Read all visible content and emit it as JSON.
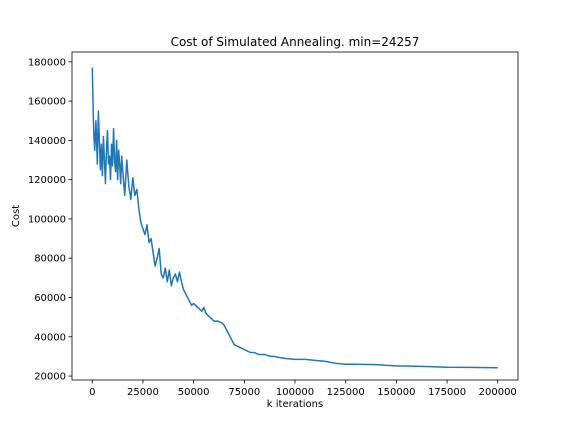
{
  "chart_data": {
    "type": "line",
    "title": "Cost of Simulated Annealing. min=24257",
    "xlabel": "k iterations",
    "ylabel": "Cost",
    "xlim": [
      -10000,
      210000
    ],
    "ylim": [
      18000,
      185000
    ],
    "xticks": [
      0,
      25000,
      50000,
      75000,
      100000,
      125000,
      150000,
      175000,
      200000
    ],
    "yticks": [
      20000,
      40000,
      60000,
      80000,
      100000,
      120000,
      140000,
      160000,
      180000
    ],
    "grid": false,
    "line_color": "#1f77b4",
    "series": [
      {
        "x": [
          0,
          300,
          700,
          1200,
          1800,
          2500,
          3000,
          3500,
          4000,
          4500,
          5000,
          5500,
          6000,
          6500,
          7000,
          7500,
          8000,
          8500,
          9000,
          9500,
          10000,
          10500,
          11000,
          11500,
          12000,
          12500,
          13000,
          13500,
          14000,
          14500,
          15000,
          16000,
          17000,
          18000,
          19000,
          20000,
          21000,
          22000,
          23000,
          24000,
          25000,
          26000,
          27000,
          28000,
          29000,
          30000,
          31000,
          32000,
          33000,
          34000,
          35000,
          36000,
          37000,
          38000,
          39000,
          40000,
          41000,
          42000,
          43000,
          44000,
          45000,
          46000,
          47000,
          48000,
          49000,
          50000,
          52000,
          54000,
          55000,
          56000,
          58000,
          60000,
          62000,
          64000,
          65000,
          66000,
          67000,
          68000,
          69000,
          70000,
          72000,
          74000,
          76000,
          78000,
          80000,
          82000,
          85000,
          88000,
          90000,
          92000,
          95000,
          100000,
          105000,
          110000,
          115000,
          120000,
          125000,
          130000,
          140000,
          150000,
          160000,
          170000,
          175000,
          185000,
          195000,
          200000
        ],
        "y": [
          177000,
          163000,
          145000,
          135000,
          150000,
          128000,
          155000,
          140000,
          125000,
          138000,
          122000,
          142000,
          130000,
          118000,
          135000,
          145000,
          128000,
          132000,
          120000,
          138000,
          127000,
          146000,
          130000,
          124000,
          140000,
          120000,
          135000,
          128000,
          118000,
          132000,
          125000,
          112000,
          130000,
          117000,
          110000,
          121000,
          112000,
          115000,
          105000,
          98000,
          95000,
          92000,
          97000,
          88000,
          90000,
          83000,
          76000,
          80000,
          85000,
          72000,
          70000,
          75000,
          68000,
          74000,
          66000,
          70000,
          72000,
          68000,
          73000,
          68000,
          64000,
          62000,
          60000,
          58000,
          56000,
          57000,
          55000,
          53000,
          55000,
          52000,
          50000,
          48000,
          48000,
          47000,
          46000,
          44000,
          42000,
          40000,
          38000,
          36000,
          35000,
          34000,
          33000,
          32000,
          32000,
          31000,
          31000,
          30000,
          30000,
          29500,
          29000,
          28500,
          28500,
          28000,
          27500,
          26500,
          26000,
          26000,
          25800,
          25200,
          25000,
          24700,
          24500,
          24400,
          24300,
          24257
        ]
      }
    ]
  }
}
